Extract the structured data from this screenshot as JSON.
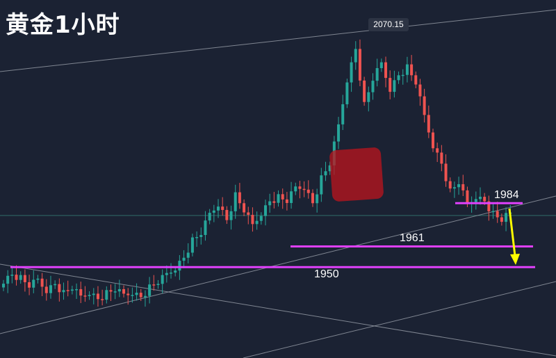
{
  "header": {
    "title": "黄金1小时"
  },
  "annotations": {
    "peak_label": "2070.15",
    "levels": [
      {
        "label": "1984",
        "value": 1984
      },
      {
        "label": "1961",
        "value": 1961
      },
      {
        "label": "1950",
        "value": 1950
      }
    ]
  },
  "colors": {
    "background": "#1b2233",
    "up_candle": "#26a69a",
    "down_candle": "#ef5350",
    "level_line": "#e040fb",
    "arrow": "#ffff00",
    "trendline": "#9aa0aa",
    "stamp": "#c0141e"
  },
  "chart_data": {
    "type": "candlestick",
    "title": "黄金1小时",
    "ylim": [
      1925,
      2075
    ],
    "peak": 2070.15,
    "horizontal_levels": [
      1984,
      1961,
      1950
    ],
    "close_path": [
      1943,
      1946,
      1944,
      1940,
      1943,
      1938,
      1941,
      1936,
      1939,
      1934,
      1937,
      1933,
      1936,
      1938,
      1935,
      1937,
      1934,
      1939,
      1942,
      1946,
      1950,
      1955,
      1964,
      1968,
      1978,
      1984,
      1975,
      1988,
      1980,
      1972,
      1979,
      1985,
      1987,
      1985,
      1992,
      1993,
      1984,
      1997,
      2005,
      2025,
      2050,
      2066,
      2036,
      2050,
      2058,
      2045,
      2052,
      2056,
      2048,
      2030,
      2015,
      2005,
      1990,
      1995,
      1983,
      1988,
      1985,
      1978,
      1975,
      1979
    ]
  }
}
